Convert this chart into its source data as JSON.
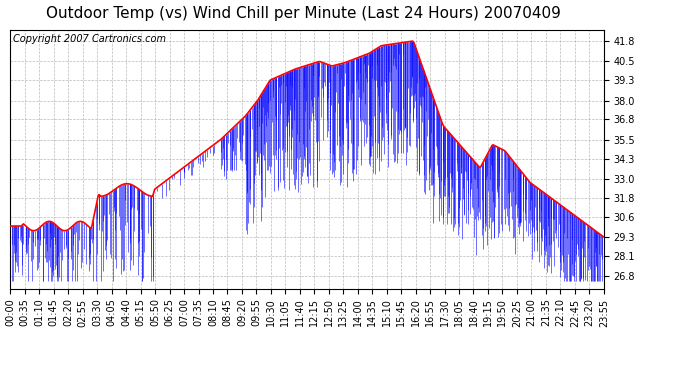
{
  "title": "Outdoor Temp (vs) Wind Chill per Minute (Last 24 Hours) 20070409",
  "copyright_text": "Copyright 2007 Cartronics.com",
  "y_ticks": [
    26.8,
    28.1,
    29.3,
    30.6,
    31.8,
    33.0,
    34.3,
    35.5,
    36.8,
    38.0,
    39.3,
    40.5,
    41.8
  ],
  "ylim": [
    26.0,
    42.5
  ],
  "x_tick_labels": [
    "00:00",
    "00:35",
    "01:10",
    "01:45",
    "02:20",
    "02:55",
    "03:30",
    "04:05",
    "04:40",
    "05:15",
    "05:50",
    "06:25",
    "07:00",
    "07:35",
    "08:10",
    "08:45",
    "09:20",
    "09:55",
    "10:30",
    "11:05",
    "11:40",
    "12:15",
    "12:50",
    "13:25",
    "14:00",
    "14:35",
    "15:10",
    "15:45",
    "16:20",
    "16:55",
    "17:30",
    "18:05",
    "18:40",
    "19:15",
    "19:50",
    "20:25",
    "21:00",
    "21:35",
    "22:10",
    "22:45",
    "23:20",
    "23:55"
  ],
  "red_line_color": "#FF0000",
  "blue_line_color": "#0000FF",
  "background_color": "#FFFFFF",
  "grid_color": "#AAAAAA",
  "title_fontsize": 11,
  "copyright_fontsize": 7,
  "tick_fontsize": 7
}
